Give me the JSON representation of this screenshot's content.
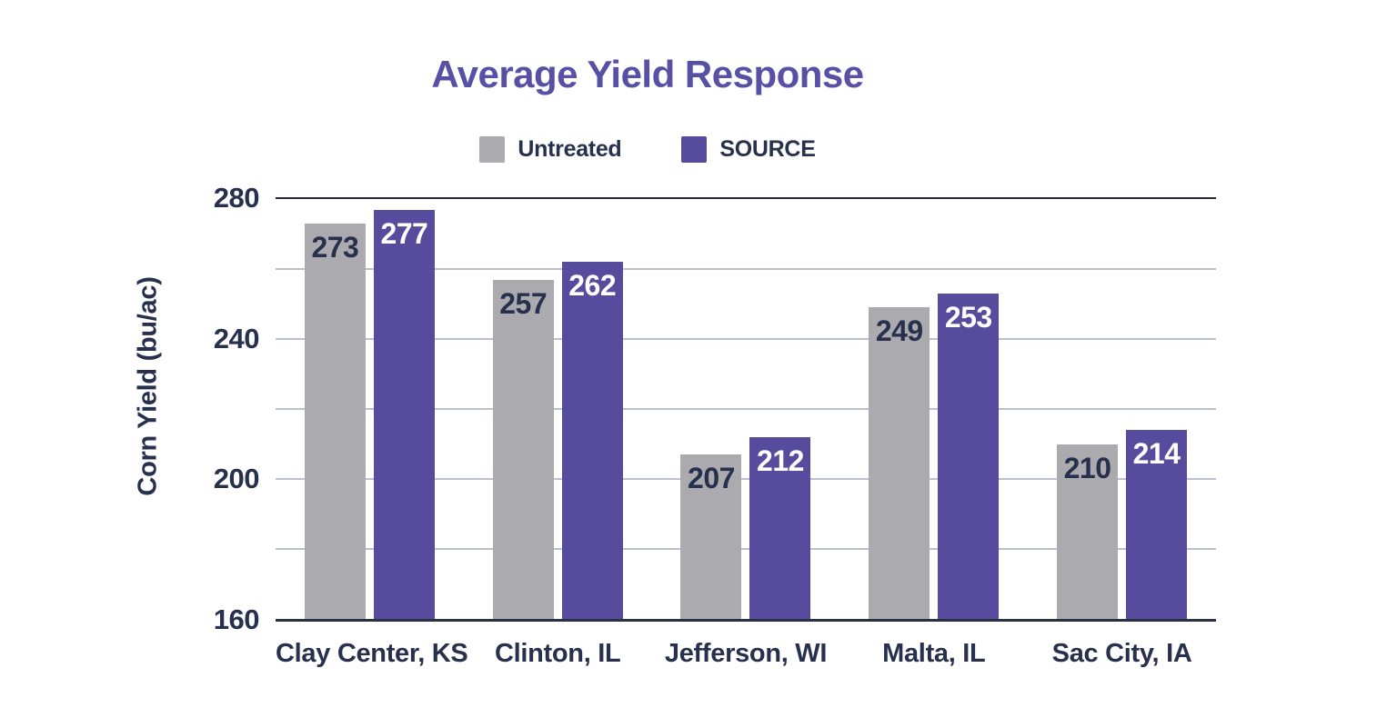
{
  "title": "Average Yield Response",
  "chart_data": {
    "type": "bar",
    "title": "Average Yield Response",
    "xlabel": "",
    "ylabel": "Corn Yield (bu/ac)",
    "categories": [
      "Clay Center, KS",
      "Clinton, IL",
      "Jefferson, WI",
      "Malta, IL",
      "Sac City, IA"
    ],
    "series": [
      {
        "name": "Untreated",
        "color": "#ABABAF",
        "label_color": "#27304C",
        "values": [
          273,
          257,
          207,
          249,
          210
        ]
      },
      {
        "name": "SOURCE",
        "color": "#574B9E",
        "label_color": "#FFFFFF",
        "values": [
          277,
          262,
          212,
          253,
          214
        ]
      }
    ],
    "ylim": [
      160,
      280
    ],
    "y_gridline_step": 20,
    "y_label_step": 40,
    "grid": true,
    "legend_position": "top-center",
    "value_labels": "inside-top"
  },
  "colors": {
    "title": "#5850A4",
    "text": "#27304C",
    "gridline": "#BCC0CC",
    "axis_line": "#2A3142",
    "background": "#FFFFFF",
    "untreated": "#ABABAF",
    "source": "#574B9E"
  }
}
